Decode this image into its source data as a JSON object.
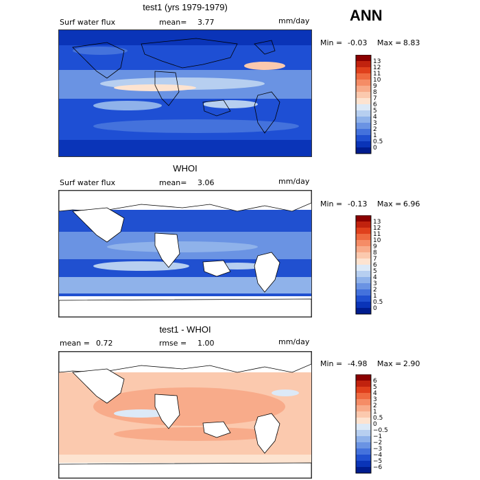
{
  "season": "ANN",
  "panels": [
    {
      "title": "test1 (yrs 1979-1979)",
      "left_label": "Surf water flux",
      "mean_label": "mean=",
      "mean_value": "3.77",
      "units": "mm/day",
      "min_label": "Min =",
      "min_value": "-0.03",
      "max_label": "Max =",
      "max_value": "8.83",
      "levels": [
        "13",
        "12",
        "11",
        "10",
        "9",
        "8",
        "7",
        "6",
        "5",
        "4",
        "3",
        "2",
        "1",
        "0.5",
        "0"
      ],
      "colors": [
        "#8b0000",
        "#c1220e",
        "#e0401c",
        "#ef6a40",
        "#f58c66",
        "#f8ab8a",
        "#fbc9ae",
        "#fde3d0",
        "#dce9f7",
        "#b7cff0",
        "#8fb2ea",
        "#6a93e3",
        "#4472dc",
        "#2050d0",
        "#0a34b8",
        "#001c8e"
      ]
    },
    {
      "title": "WHOI",
      "left_label": "Surf water flux",
      "mean_label": "mean=",
      "mean_value": "3.06",
      "units": "mm/day",
      "min_label": "Min =",
      "min_value": "-0.13",
      "max_label": "Max =",
      "max_value": "6.96",
      "levels": [
        "13",
        "12",
        "11",
        "10",
        "9",
        "8",
        "7",
        "6",
        "5",
        "4",
        "3",
        "2",
        "1",
        "0.5",
        "0"
      ],
      "colors": [
        "#8b0000",
        "#c1220e",
        "#e0401c",
        "#ef6a40",
        "#f58c66",
        "#f8ab8a",
        "#fbc9ae",
        "#fde3d0",
        "#dce9f7",
        "#b7cff0",
        "#8fb2ea",
        "#6a93e3",
        "#4472dc",
        "#2050d0",
        "#0a34b8",
        "#001c8e"
      ]
    },
    {
      "title": "test1 - WHOI",
      "left_label": "mean =",
      "mean_label": "rmse =",
      "left_value": "0.72",
      "mean_value": "1.00",
      "units": "mm/day",
      "min_label": "Min =",
      "min_value": "-4.98",
      "max_label": "Max =",
      "max_value": "2.90",
      "levels": [
        "6",
        "5",
        "4",
        "3",
        "2",
        "1",
        "0.5",
        "0",
        "−0.5",
        "−1",
        "−2",
        "−3",
        "−4",
        "−5",
        "−6"
      ],
      "colors": [
        "#8b0000",
        "#c1220e",
        "#e0401c",
        "#ef6a40",
        "#f58c66",
        "#f8ab8a",
        "#fbc9ae",
        "#fde3d0",
        "#dce9f7",
        "#b7cff0",
        "#8fb2ea",
        "#6a93e3",
        "#4472dc",
        "#2050d0",
        "#0a34b8",
        "#001c8e"
      ]
    }
  ]
}
